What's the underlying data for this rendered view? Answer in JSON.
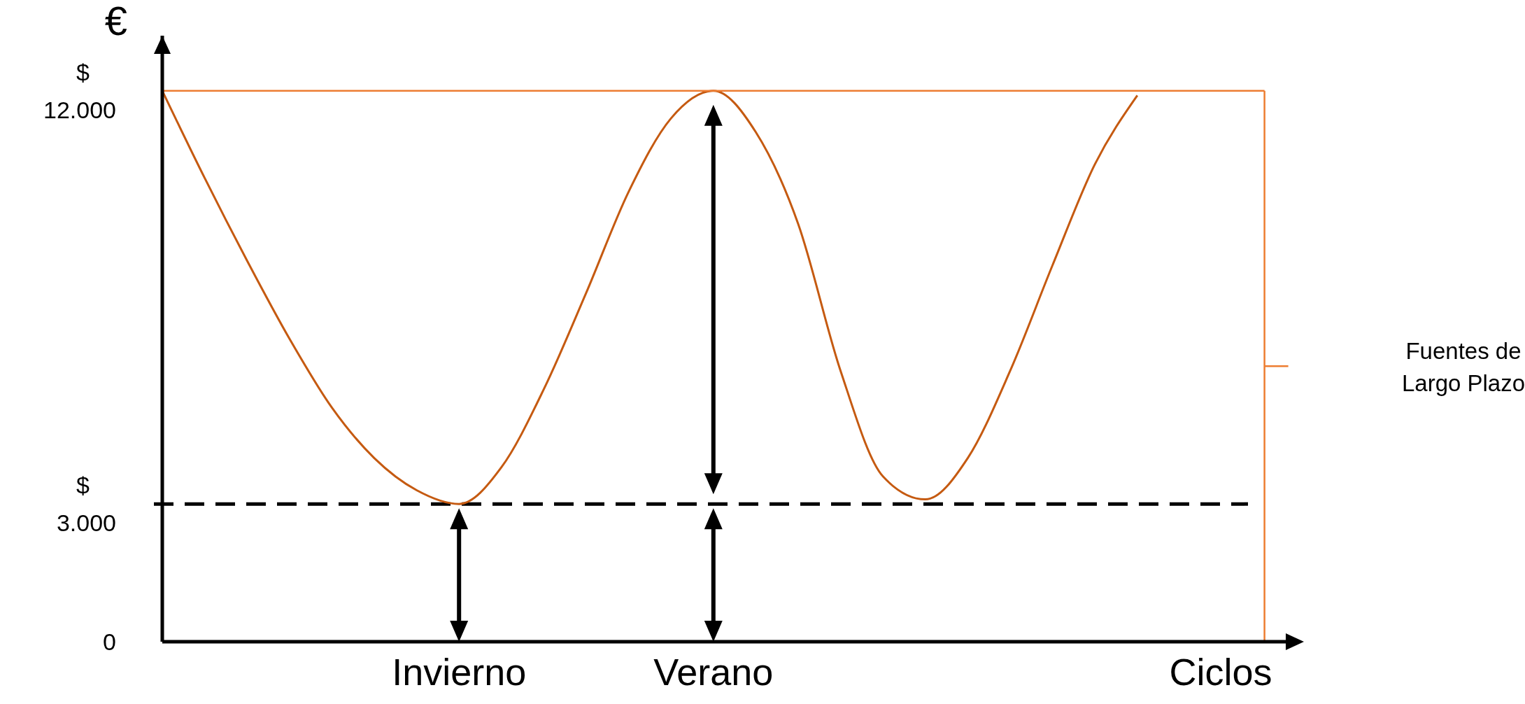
{
  "chart_data": {
    "type": "line",
    "xlabel": "Ciclos",
    "ylabel": "€",
    "grid": false,
    "categories": [
      null,
      null,
      null,
      null,
      null,
      null,
      null,
      "Invierno",
      null,
      null,
      null,
      null,
      null,
      "Verano",
      null,
      null,
      null,
      null,
      null,
      null,
      null,
      null,
      null,
      null,
      null,
      null,
      null
    ],
    "ylim": [
      0,
      13200
    ],
    "yticks": [
      {
        "value": 0,
        "label": "0"
      },
      {
        "value": 3000,
        "label": "$\n3.000"
      },
      {
        "value": 12000,
        "label": "$\n12.000"
      }
    ],
    "series": [
      {
        "color": "#c55a11",
        "values": [
          12000,
          10100,
          8300,
          6600,
          5100,
          4000,
          3300,
          3000,
          3800,
          5500,
          7600,
          9800,
          11400,
          12000,
          11100,
          9100,
          5900,
          3600,
          3100,
          4000,
          5900,
          8200,
          10400,
          11900,
          null,
          null,
          null
        ]
      },
      {
        "name": "Fuentes de Largo Plazo",
        "color": "#ed7d31",
        "values": [
          12000,
          12000,
          12000,
          12000,
          12000,
          12000,
          12000,
          12000,
          12000,
          12000,
          12000,
          12000,
          12000,
          12000,
          12000,
          12000,
          12000,
          12000,
          12000,
          12000,
          12000,
          12000,
          12000,
          12000,
          12000,
          12000,
          12000
        ]
      }
    ],
    "ref_lines": [
      {
        "axis": "y",
        "value": 3000,
        "color": "#000000",
        "line_style": "dashed"
      }
    ]
  }
}
